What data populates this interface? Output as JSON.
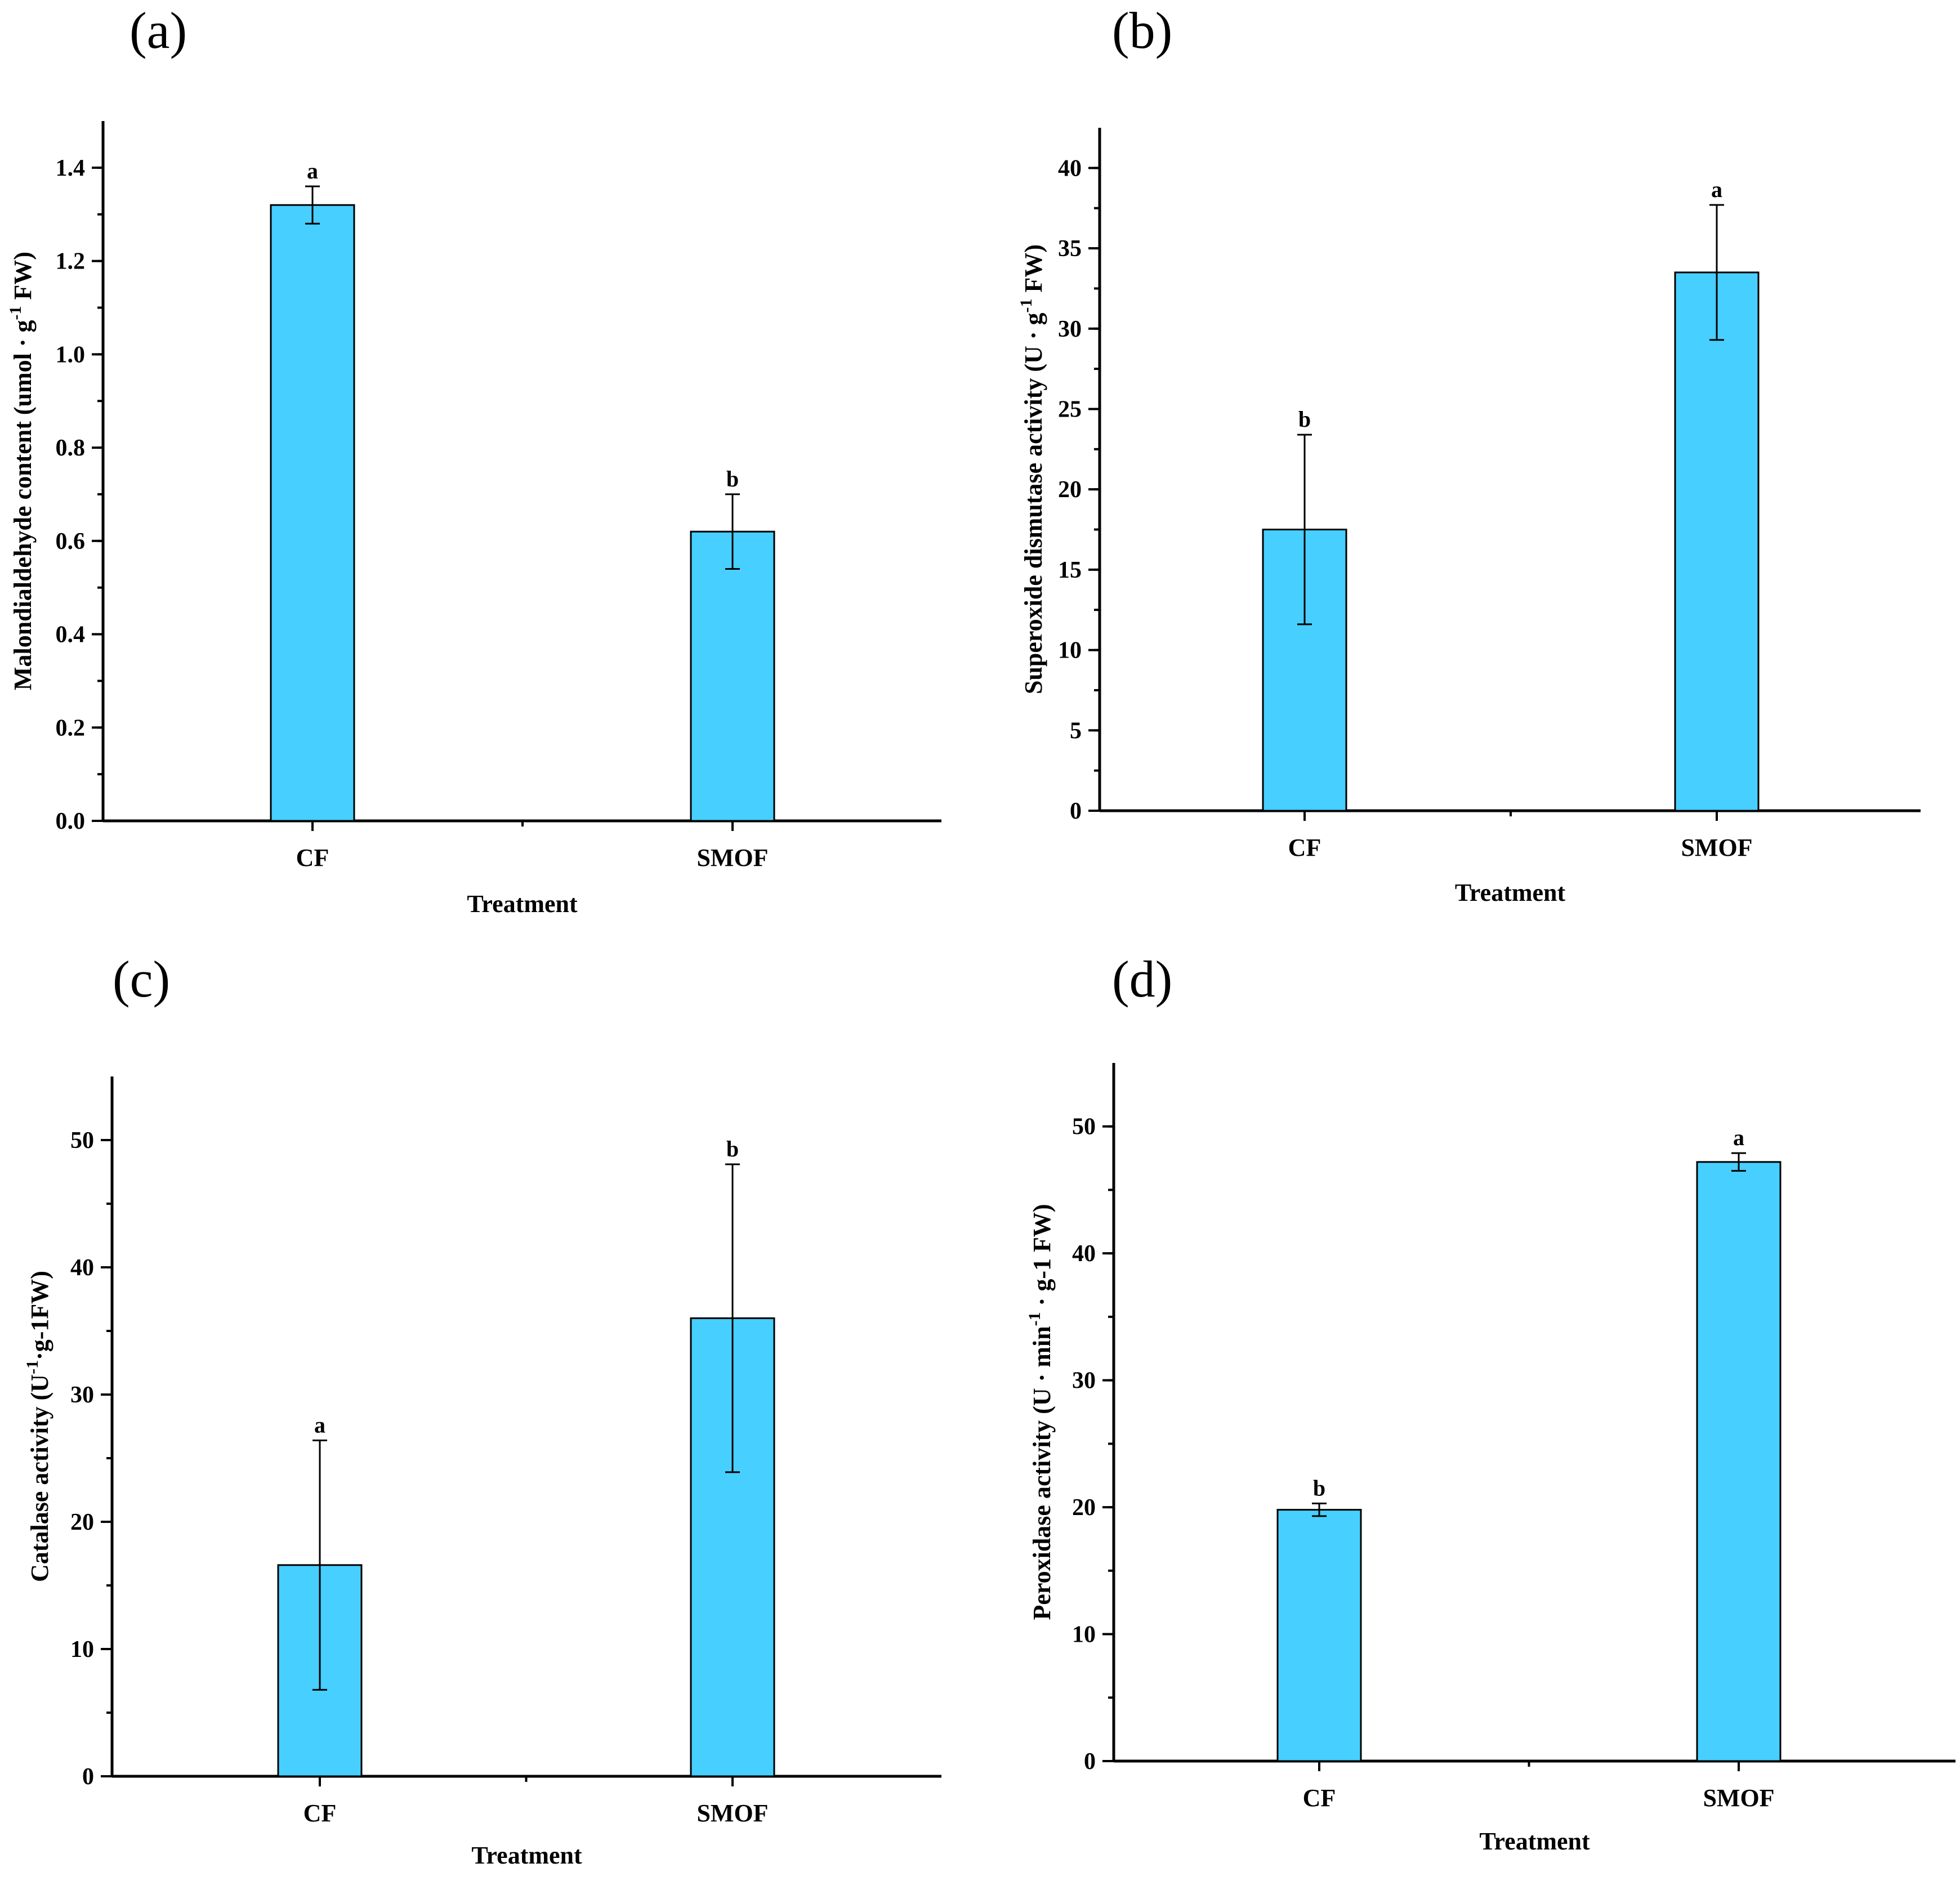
{
  "chart_data": [
    {
      "type": "bar",
      "panel": "(a)",
      "categories": [
        "CF",
        "SMOF"
      ],
      "values": [
        1.32,
        0.62
      ],
      "errors": [
        0.04,
        0.08
      ],
      "significance": [
        "a",
        "b"
      ],
      "xlabel": "Treatment",
      "ylabel": "Malondialdehyde content (umol · g",
      "ylabel_sup": "-1",
      "ylabel_tail": " FW)",
      "ylim": [
        0,
        1.5
      ],
      "yticks": [
        0.0,
        0.2,
        0.4,
        0.6,
        0.8,
        1.0,
        1.2,
        1.4
      ],
      "ytick_labels": [
        "0.0",
        "0.2",
        "0.4",
        "0.6",
        "0.8",
        "1.0",
        "1.2",
        "1.4"
      ],
      "minor_step": 0.1,
      "grid": false,
      "bar_color": "#47CFFF"
    },
    {
      "type": "bar",
      "panel": "(b)",
      "categories": [
        "CF",
        "SMOF"
      ],
      "values": [
        17.5,
        33.5
      ],
      "errors": [
        5.9,
        4.2
      ],
      "significance": [
        "b",
        "a"
      ],
      "xlabel": "Treatment",
      "ylabel": "Superoxide dismutase activity (U · g",
      "ylabel_sup": "-1",
      "ylabel_tail": " FW)",
      "ylim": [
        0,
        42.5
      ],
      "yticks": [
        0,
        5,
        10,
        15,
        20,
        25,
        30,
        35,
        40
      ],
      "ytick_labels": [
        "0",
        "5",
        "10",
        "15",
        "20",
        "25",
        "30",
        "35",
        "40"
      ],
      "minor_step": 2.5,
      "grid": false,
      "bar_color": "#47CFFF"
    },
    {
      "type": "bar",
      "panel": "(c)",
      "categories": [
        "CF",
        "SMOF"
      ],
      "values": [
        16.6,
        36.0
      ],
      "errors": [
        9.8,
        12.1
      ],
      "significance": [
        "a",
        "b"
      ],
      "xlabel": "Treatment",
      "ylabel": "Catalase activity (U",
      "ylabel_sup": "-1",
      "ylabel_tail": "·g-1FW)",
      "ylim": [
        0,
        55
      ],
      "yticks": [
        0,
        10,
        20,
        30,
        40,
        50
      ],
      "ytick_labels": [
        "0",
        "10",
        "20",
        "30",
        "40",
        "50"
      ],
      "minor_step": 5,
      "grid": false,
      "bar_color": "#47CFFF"
    },
    {
      "type": "bar",
      "panel": "(d)",
      "categories": [
        "CF",
        "SMOF"
      ],
      "values": [
        19.8,
        47.2
      ],
      "errors": [
        0.5,
        0.7
      ],
      "significance": [
        "b",
        "a"
      ],
      "xlabel": "Treatment",
      "ylabel": "Peroxidase activity (U · min",
      "ylabel_sup": "-1",
      "ylabel_tail": " · g-1 FW)",
      "ylim": [
        0,
        55
      ],
      "yticks": [
        0,
        10,
        20,
        30,
        40,
        50
      ],
      "ytick_labels": [
        "0",
        "10",
        "20",
        "30",
        "40",
        "50"
      ],
      "minor_step": 5,
      "grid": false,
      "bar_color": "#47CFFF"
    }
  ]
}
